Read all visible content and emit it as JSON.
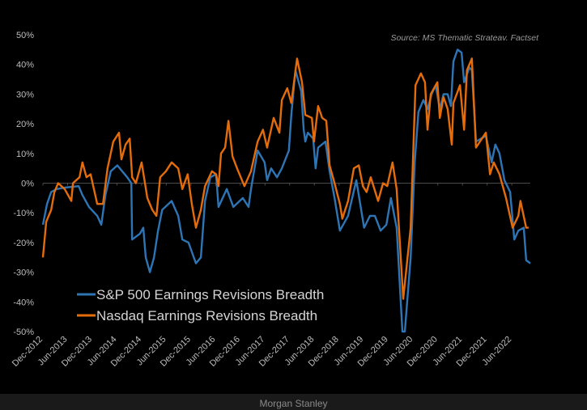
{
  "chart_data": {
    "type": "line",
    "title": "",
    "source": "Source: MS Thematic Strateav. Factset",
    "xlabel": "",
    "ylabel": "",
    "x_unit": "months since Dec-2012",
    "ylim": [
      -50,
      50
    ],
    "yticks": [
      50,
      40,
      30,
      20,
      10,
      0,
      -10,
      -20,
      -30,
      -40,
      -50
    ],
    "ytick_labels": [
      "50%",
      "40%",
      "30%",
      "20%",
      "10%",
      "0%",
      "-10%",
      "-20%",
      "-30%",
      "-40%",
      "-50%"
    ],
    "xtick_labels": [
      "Dec-2012",
      "Jun-2013",
      "Dec-2013",
      "Jun-2014",
      "Dec-2014",
      "Jun-2015",
      "Dec-2015",
      "Jun-2016",
      "Dec-2016",
      "Jun-2017",
      "Dec-2017",
      "Jun-2018",
      "Dec-2018",
      "Jun-2019",
      "Dec-2019",
      "Jun-2020",
      "Dec-2020",
      "Jun-2021",
      "Dec-2021",
      "Jun-2022"
    ],
    "xlim": [
      0,
      118.5
    ],
    "legend_position": "bottom-left",
    "series": [
      {
        "name": "S&P 500 Earnings Revisions Breadth",
        "color": "#2e75b6",
        "points": [
          [
            0,
            -14
          ],
          [
            1,
            -7
          ],
          [
            2,
            -3
          ],
          [
            3.3,
            -2
          ],
          [
            5.3,
            -1.5
          ],
          [
            8.7,
            -1
          ],
          [
            9.6,
            -4
          ],
          [
            11.2,
            -8
          ],
          [
            13.2,
            -11
          ],
          [
            14.2,
            -14
          ],
          [
            15.2,
            -4
          ],
          [
            16.5,
            4
          ],
          [
            18.1,
            6
          ],
          [
            20.5,
            2
          ],
          [
            21.5,
            0
          ],
          [
            21.7,
            -19
          ],
          [
            23.6,
            -17
          ],
          [
            24.4,
            -15
          ],
          [
            25,
            -25
          ],
          [
            26,
            -30
          ],
          [
            27,
            -25
          ],
          [
            28,
            -16
          ],
          [
            29,
            -9
          ],
          [
            31.3,
            -6
          ],
          [
            32.9,
            -11
          ],
          [
            33.9,
            -19
          ],
          [
            35.4,
            -20
          ],
          [
            37.2,
            -27
          ],
          [
            38.4,
            -25
          ],
          [
            39.4,
            -6
          ],
          [
            40.7,
            2
          ],
          [
            42.1,
            3
          ],
          [
            42.7,
            -8
          ],
          [
            44.7,
            -2
          ],
          [
            46.3,
            -8
          ],
          [
            48.6,
            -5
          ],
          [
            50,
            -8
          ],
          [
            50.6,
            -2
          ],
          [
            52.2,
            11
          ],
          [
            53.9,
            7
          ],
          [
            54.5,
            1
          ],
          [
            55.5,
            5
          ],
          [
            56.9,
            2
          ],
          [
            58.1,
            5
          ],
          [
            59.8,
            11
          ],
          [
            60.4,
            23
          ],
          [
            61.4,
            38
          ],
          [
            62.8,
            31
          ],
          [
            63.4,
            18
          ],
          [
            63.8,
            14
          ],
          [
            64.4,
            17
          ],
          [
            65.7,
            15
          ],
          [
            66.3,
            5
          ],
          [
            66.9,
            12
          ],
          [
            68.7,
            14
          ],
          [
            69.7,
            4
          ],
          [
            70.9,
            -5
          ],
          [
            72.2,
            -16
          ],
          [
            74.2,
            -11
          ],
          [
            76.2,
            1
          ],
          [
            78.1,
            -15
          ],
          [
            79.5,
            -11
          ],
          [
            80.7,
            -11
          ],
          [
            82.1,
            -16
          ],
          [
            83.5,
            -14
          ],
          [
            84.6,
            -5
          ],
          [
            86,
            -15
          ],
          [
            87.4,
            -50
          ],
          [
            88,
            -50
          ],
          [
            89.4,
            -25
          ],
          [
            90.4,
            7
          ],
          [
            91.3,
            24
          ],
          [
            92.5,
            28
          ],
          [
            93.5,
            25
          ],
          [
            94.5,
            30
          ],
          [
            95.5,
            33
          ],
          [
            96.5,
            25
          ],
          [
            97.4,
            30
          ],
          [
            98.4,
            30
          ],
          [
            99.2,
            26
          ],
          [
            99.8,
            41
          ],
          [
            100.8,
            45
          ],
          [
            101.8,
            44
          ],
          [
            102.4,
            34
          ],
          [
            103.7,
            39
          ],
          [
            104.3,
            38
          ],
          [
            105.3,
            14
          ],
          [
            107.7,
            16
          ],
          [
            109.1,
            7
          ],
          [
            110,
            13
          ],
          [
            111,
            10
          ],
          [
            112.2,
            1
          ],
          [
            113.6,
            -3
          ],
          [
            114.6,
            -19
          ],
          [
            115.6,
            -16
          ],
          [
            116.9,
            -15
          ],
          [
            117.5,
            -26
          ],
          [
            118.5,
            -27
          ]
        ]
      },
      {
        "name": "Nasdaq Earnings Revisions Breadth",
        "color": "#e46c0a",
        "points": [
          [
            0,
            -25
          ],
          [
            0.8,
            -13
          ],
          [
            2,
            -9
          ],
          [
            2.8,
            -3
          ],
          [
            3.7,
            0
          ],
          [
            5.3,
            -2
          ],
          [
            6.9,
            -6
          ],
          [
            7.3,
            0
          ],
          [
            8.9,
            2
          ],
          [
            9.6,
            7
          ],
          [
            10.6,
            2
          ],
          [
            11.6,
            3
          ],
          [
            13.2,
            -7
          ],
          [
            14.6,
            -7
          ],
          [
            15.7,
            5
          ],
          [
            17.1,
            14
          ],
          [
            18.5,
            17
          ],
          [
            19.1,
            8
          ],
          [
            20.1,
            13
          ],
          [
            21.1,
            15
          ],
          [
            21.7,
            2
          ],
          [
            22.6,
            0
          ],
          [
            24,
            7
          ],
          [
            25.4,
            -5
          ],
          [
            26.6,
            -9
          ],
          [
            27.6,
            -11
          ],
          [
            28.5,
            2
          ],
          [
            29.9,
            4
          ],
          [
            31.3,
            7
          ],
          [
            32.9,
            5
          ],
          [
            33.9,
            -2
          ],
          [
            35.2,
            3
          ],
          [
            36.2,
            -7
          ],
          [
            37.2,
            -15
          ],
          [
            38.4,
            -9
          ],
          [
            39.4,
            -1
          ],
          [
            41.1,
            4
          ],
          [
            42.1,
            3
          ],
          [
            42.7,
            -1
          ],
          [
            43.3,
            10
          ],
          [
            44.3,
            12
          ],
          [
            45.1,
            21
          ],
          [
            46.1,
            9
          ],
          [
            47.2,
            5
          ],
          [
            49,
            -1
          ],
          [
            50.6,
            4
          ],
          [
            52.2,
            14
          ],
          [
            53.5,
            18
          ],
          [
            54.5,
            12
          ],
          [
            56.1,
            22
          ],
          [
            57.5,
            17
          ],
          [
            58.1,
            28
          ],
          [
            59.4,
            32
          ],
          [
            60.4,
            27
          ],
          [
            61.8,
            42
          ],
          [
            63,
            34
          ],
          [
            63.8,
            23
          ],
          [
            65.4,
            22
          ],
          [
            65.9,
            14
          ],
          [
            66.9,
            26
          ],
          [
            67.9,
            22
          ],
          [
            68.9,
            21
          ],
          [
            69.7,
            6
          ],
          [
            70.9,
            0
          ],
          [
            72.2,
            -7
          ],
          [
            72.8,
            -12
          ],
          [
            74.2,
            -6
          ],
          [
            75.6,
            5
          ],
          [
            76.8,
            6
          ],
          [
            77.8,
            -1
          ],
          [
            78.7,
            -3
          ],
          [
            79.7,
            2
          ],
          [
            81.5,
            -6
          ],
          [
            82.7,
            0
          ],
          [
            83.7,
            -1
          ],
          [
            85,
            7
          ],
          [
            86,
            -2
          ],
          [
            87.6,
            -39
          ],
          [
            89.4,
            -15
          ],
          [
            90.6,
            33
          ],
          [
            91.9,
            37
          ],
          [
            92.9,
            34
          ],
          [
            93.5,
            18
          ],
          [
            94.3,
            30
          ],
          [
            95.9,
            34
          ],
          [
            96.5,
            22
          ],
          [
            97.4,
            29
          ],
          [
            98.4,
            25
          ],
          [
            99.4,
            13
          ],
          [
            99.8,
            27
          ],
          [
            101.4,
            33
          ],
          [
            102.4,
            18
          ],
          [
            103.1,
            38
          ],
          [
            104.3,
            42
          ],
          [
            105.3,
            12
          ],
          [
            107.7,
            17
          ],
          [
            108.7,
            3
          ],
          [
            109.6,
            7
          ],
          [
            111,
            3
          ],
          [
            112.6,
            -5
          ],
          [
            114.2,
            -15
          ],
          [
            115.6,
            -11
          ],
          [
            116.1,
            -6
          ],
          [
            117.5,
            -15
          ],
          [
            118.1,
            -15
          ]
        ]
      }
    ]
  },
  "footer": {
    "text": "Morgan Stanley"
  }
}
